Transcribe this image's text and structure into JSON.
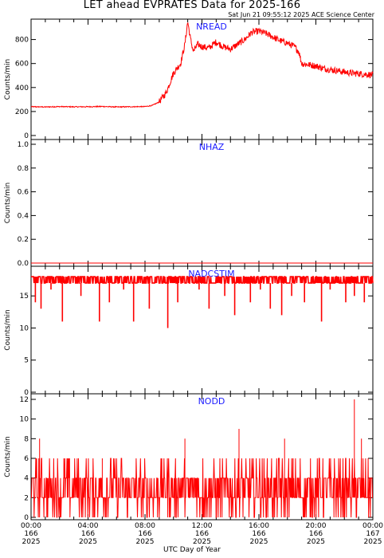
{
  "title": "LET ahead EVPRATES Data for 2025-166",
  "timestamp": "Sat Jun 21 09:55:12 2025 ACE Science Center",
  "xlabel": "UTC Day of Year",
  "colors": {
    "series": "#ff0000",
    "panel_title": "#1a1aff",
    "axis": "#000000"
  },
  "chart_data": [
    {
      "type": "line",
      "title": "NREAD",
      "ylabel": "Counts/min",
      "ylim": [
        0,
        950
      ],
      "yticks": [
        0,
        200,
        400,
        600,
        800
      ],
      "xlim": [
        0,
        24
      ],
      "series": [
        {
          "x": [
            0,
            1,
            2,
            3,
            4,
            5,
            6,
            7,
            8,
            8.5,
            9,
            9.5,
            10,
            10.5,
            10.8,
            11.0,
            11.2,
            11.4,
            11.7,
            12,
            12.5,
            13,
            13.5,
            14,
            14.5,
            15,
            15.5,
            16,
            16.5,
            17,
            17.5,
            18,
            18.5,
            18.8,
            19,
            19.5,
            20,
            20.5,
            21,
            21.5,
            22,
            22.5,
            23,
            23.5,
            24
          ],
          "y": [
            240,
            238,
            241,
            239,
            240,
            242,
            238,
            240,
            241,
            250,
            280,
            360,
            520,
            600,
            760,
            950,
            800,
            700,
            760,
            740,
            730,
            780,
            740,
            720,
            760,
            800,
            860,
            870,
            850,
            820,
            790,
            770,
            740,
            700,
            600,
            590,
            580,
            560,
            550,
            540,
            530,
            520,
            515,
            510,
            505
          ]
        }
      ]
    },
    {
      "type": "line",
      "title": "NHAZ",
      "ylabel": "Counts/min",
      "ylim": [
        0,
        1.0
      ],
      "yticks": [
        "0.0",
        "0.2",
        "0.4",
        "0.6",
        "0.8",
        "1.0"
      ],
      "xlim": [
        0,
        24
      ],
      "series": [
        {
          "x": [
            0,
            24
          ],
          "y": [
            0,
            0
          ]
        }
      ]
    },
    {
      "type": "line",
      "title": "NADCSTIM",
      "ylabel": "Counts/min",
      "ylim": [
        0,
        19
      ],
      "yticks": [
        0,
        5,
        10,
        15
      ],
      "xlim": [
        0,
        24
      ],
      "series": [
        {
          "baseline": 17.5,
          "dips_x": [
            0.3,
            0.7,
            1.4,
            2.2,
            3.5,
            4.8,
            5.5,
            6.5,
            7.2,
            8.3,
            9.6,
            10.3,
            11.8,
            12.5,
            13.6,
            14.3,
            15.4,
            16.1,
            16.8,
            17.6,
            18.3,
            19.2,
            20.4,
            21.0,
            22.1,
            22.7,
            23.4
          ],
          "dips_y": [
            14,
            13,
            16,
            11,
            15,
            11,
            14,
            16,
            11,
            13,
            10,
            14,
            16,
            13,
            15,
            12,
            14,
            16,
            13,
            12,
            15,
            14,
            11,
            16,
            14,
            15,
            14
          ]
        }
      ]
    },
    {
      "type": "line",
      "title": "NODD",
      "ylabel": "Counts/min",
      "ylim": [
        0,
        12
      ],
      "yticks": [
        0,
        2,
        4,
        6,
        8,
        10,
        12
      ],
      "xlim": [
        0,
        24
      ],
      "series": [
        {
          "levels": [
            0,
            2,
            4,
            6
          ],
          "spikes_x": [
            0.6,
            2.3,
            5.0,
            10.8,
            14.6,
            17.8,
            18.4,
            22.7,
            23.2
          ],
          "spikes_y": [
            8,
            6,
            6,
            8,
            9,
            8,
            6,
            12,
            8
          ]
        }
      ]
    }
  ],
  "xticks": [
    {
      "time": "00:00",
      "doy": "166",
      "year": "2025"
    },
    {
      "time": "04:00",
      "doy": "166",
      "year": "2025"
    },
    {
      "time": "08:00",
      "doy": "166",
      "year": "2025"
    },
    {
      "time": "12:00",
      "doy": "166",
      "year": "2025"
    },
    {
      "time": "16:00",
      "doy": "166",
      "year": "2025"
    },
    {
      "time": "20:00",
      "doy": "166",
      "year": "2025"
    },
    {
      "time": "00:00",
      "doy": "167",
      "year": "2025"
    }
  ]
}
